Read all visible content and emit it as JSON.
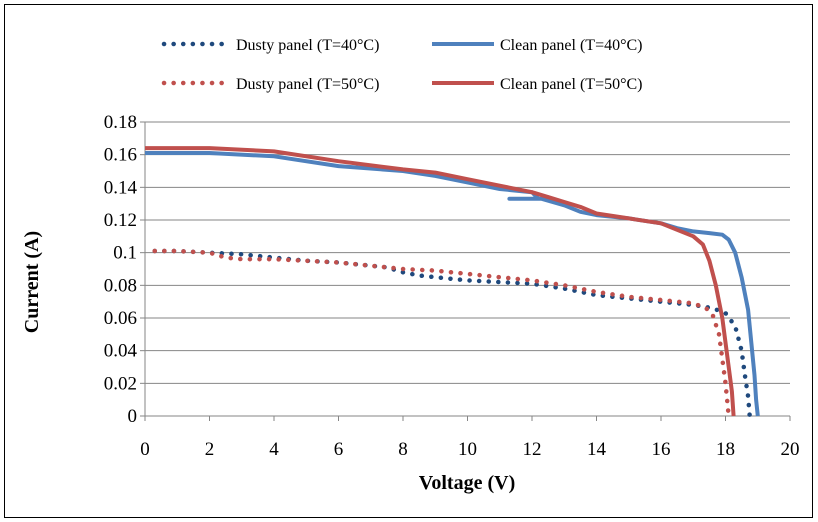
{
  "chart_data": {
    "type": "line",
    "xlabel": "Voltage (V)",
    "ylabel": "Current (A)",
    "xlim": [
      0,
      20
    ],
    "ylim": [
      0,
      0.18
    ],
    "x_ticks": [
      "0",
      "2",
      "4",
      "6",
      "8",
      "10",
      "12",
      "14",
      "16",
      "18",
      "20"
    ],
    "y_ticks": [
      "0",
      "0.02",
      "0.04",
      "0.06",
      "0.08",
      "0.1",
      "0.12",
      "0.14",
      "0.16",
      "0.18"
    ],
    "grid": "horizontal",
    "legend_position": "top",
    "series": [
      {
        "name": "Dusty panel (T=40°C)",
        "style": "dotted",
        "color": "#1F497D",
        "points": [
          [
            0.3,
            0.101
          ],
          [
            1,
            0.101
          ],
          [
            2,
            0.1
          ],
          [
            3,
            0.099
          ],
          [
            4,
            0.097
          ],
          [
            5,
            0.095
          ],
          [
            6,
            0.094
          ],
          [
            7,
            0.092
          ],
          [
            7.5,
            0.091
          ],
          [
            8,
            0.088
          ],
          [
            8.5,
            0.086
          ],
          [
            9,
            0.085
          ],
          [
            10,
            0.083
          ],
          [
            11,
            0.082
          ],
          [
            12,
            0.081
          ],
          [
            13,
            0.078
          ],
          [
            14,
            0.074
          ],
          [
            15,
            0.072
          ],
          [
            16,
            0.07
          ],
          [
            17,
            0.068
          ],
          [
            17.6,
            0.066
          ],
          [
            18,
            0.063
          ],
          [
            18.3,
            0.055
          ],
          [
            18.5,
            0.04
          ],
          [
            18.6,
            0.025
          ],
          [
            18.7,
            0.012
          ],
          [
            18.75,
            0.0
          ]
        ]
      },
      {
        "name": "Clean panel (T=40°C)",
        "style": "solid",
        "color": "#4F81BD",
        "points": [
          [
            0,
            0.161
          ],
          [
            2,
            0.161
          ],
          [
            4,
            0.159
          ],
          [
            6,
            0.153
          ],
          [
            8,
            0.15
          ],
          [
            9,
            0.147
          ],
          [
            10,
            0.143
          ],
          [
            11,
            0.139
          ],
          [
            12,
            0.137
          ],
          [
            12.2,
            0.133
          ],
          [
            11.3,
            0.133
          ],
          [
            12.3,
            0.133
          ],
          [
            13,
            0.129
          ],
          [
            13.5,
            0.125
          ],
          [
            14,
            0.123
          ],
          [
            15,
            0.121
          ],
          [
            16,
            0.118
          ],
          [
            16.5,
            0.115
          ],
          [
            17,
            0.113
          ],
          [
            17.5,
            0.112
          ],
          [
            17.9,
            0.111
          ],
          [
            18.1,
            0.108
          ],
          [
            18.3,
            0.1
          ],
          [
            18.5,
            0.085
          ],
          [
            18.7,
            0.065
          ],
          [
            18.8,
            0.045
          ],
          [
            18.9,
            0.025
          ],
          [
            18.95,
            0.01
          ],
          [
            19.0,
            0.0
          ]
        ]
      },
      {
        "name": "Dusty panel (T=50°C)",
        "style": "dotted",
        "color": "#C0504D",
        "points": [
          [
            0.3,
            0.101
          ],
          [
            1,
            0.101
          ],
          [
            2,
            0.1
          ],
          [
            2.5,
            0.097
          ],
          [
            3,
            0.096
          ],
          [
            4,
            0.096
          ],
          [
            5,
            0.095
          ],
          [
            6,
            0.094
          ],
          [
            7,
            0.092
          ],
          [
            8,
            0.09
          ],
          [
            9,
            0.089
          ],
          [
            10,
            0.087
          ],
          [
            11,
            0.085
          ],
          [
            12,
            0.083
          ],
          [
            13,
            0.08
          ],
          [
            14,
            0.076
          ],
          [
            15,
            0.073
          ],
          [
            16,
            0.071
          ],
          [
            17,
            0.069
          ],
          [
            17.4,
            0.066
          ],
          [
            17.6,
            0.062
          ],
          [
            17.8,
            0.05
          ],
          [
            17.9,
            0.035
          ],
          [
            18.0,
            0.02
          ],
          [
            18.05,
            0.01
          ],
          [
            18.1,
            0.0
          ]
        ]
      },
      {
        "name": "Clean panel (T=50°C)",
        "style": "solid",
        "color": "#C0504D",
        "points": [
          [
            0,
            0.164
          ],
          [
            2,
            0.164
          ],
          [
            4,
            0.162
          ],
          [
            6,
            0.156
          ],
          [
            8,
            0.151
          ],
          [
            9,
            0.149
          ],
          [
            10,
            0.145
          ],
          [
            11,
            0.141
          ],
          [
            12,
            0.137
          ],
          [
            12.5,
            0.134
          ],
          [
            13,
            0.131
          ],
          [
            13.5,
            0.128
          ],
          [
            14,
            0.124
          ],
          [
            15,
            0.121
          ],
          [
            16,
            0.118
          ],
          [
            16.5,
            0.114
          ],
          [
            17,
            0.11
          ],
          [
            17.3,
            0.105
          ],
          [
            17.5,
            0.095
          ],
          [
            17.7,
            0.08
          ],
          [
            17.9,
            0.06
          ],
          [
            18.0,
            0.045
          ],
          [
            18.1,
            0.03
          ],
          [
            18.2,
            0.015
          ],
          [
            18.25,
            0.0
          ]
        ]
      }
    ]
  }
}
